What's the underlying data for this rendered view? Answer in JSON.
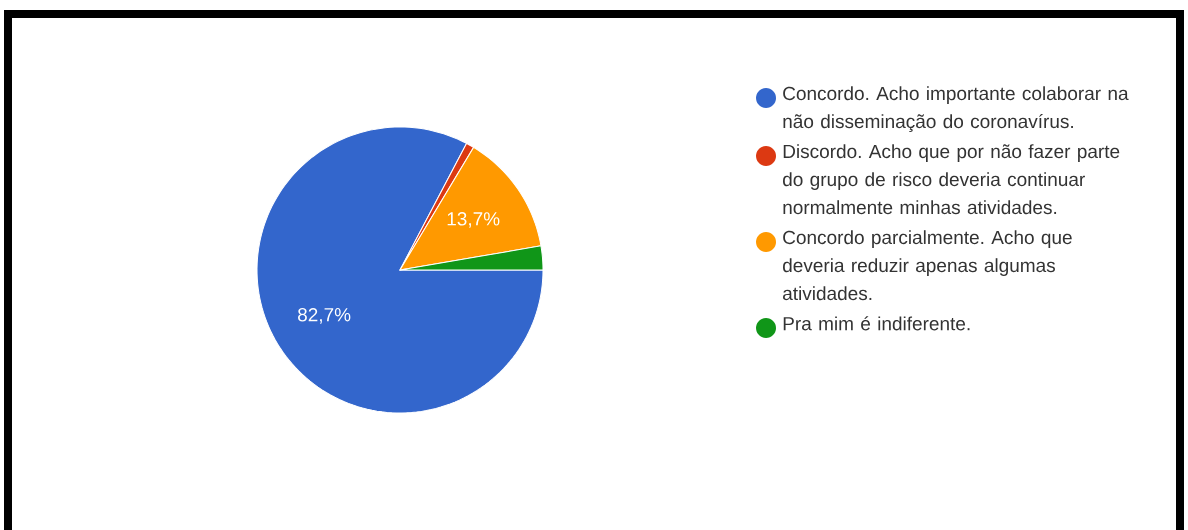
{
  "chart_data": {
    "type": "pie",
    "categories": [
      "Concordo. Acho importante colaborar na não disseminação do coronavírus.",
      "Discordo. Acho que por não fazer parte do grupo de risco deveria continuar normalmente minhas atividades.",
      "Concordo parcialmente. Acho que deveria reduzir apenas algumas atividades.",
      "Pra mim é indiferente."
    ],
    "values": [
      82.7,
      0.9,
      13.7,
      2.7
    ],
    "value_labels": [
      "82,7%",
      null,
      "13,7%",
      null
    ],
    "colors": [
      "#3366cc",
      "#dc3912",
      "#ff9900",
      "#109618"
    ],
    "legend": "right"
  }
}
